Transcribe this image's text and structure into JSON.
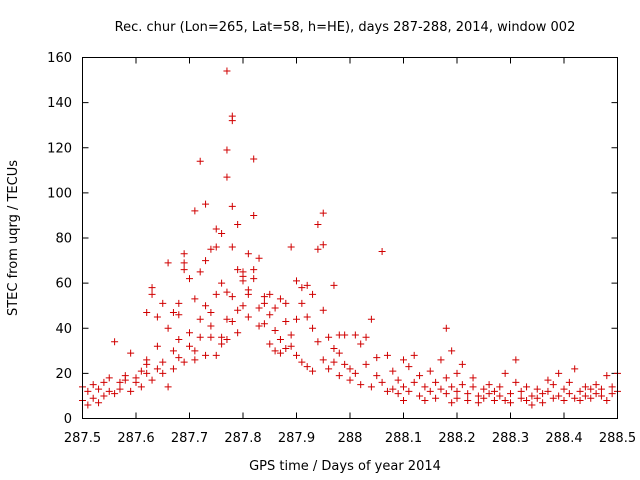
{
  "chart_data": {
    "type": "scatter",
    "title": "Rec. chur (Lon=265, Lat=58, h=HE), days 287-288, 2014, window 002",
    "xlabel": "GPS time / Days of year 2014",
    "ylabel": "STEC from uqrg / TECUs",
    "xlim": [
      287.5,
      288.5
    ],
    "ylim": [
      0,
      160
    ],
    "xticks": [
      287.5,
      287.6,
      287.7,
      287.8,
      287.9,
      288.0,
      288.1,
      288.2,
      288.3,
      288.4,
      288.5
    ],
    "xtick_labels": [
      "287.5",
      "287.6",
      "287.7",
      "287.8",
      "287.9",
      "288",
      "288.1",
      "288.2",
      "288.3",
      "288.4",
      "288.5"
    ],
    "yticks": [
      0,
      20,
      40,
      60,
      80,
      100,
      120,
      140,
      160
    ],
    "ytick_labels": [
      "0",
      "20",
      "40",
      "60",
      "80",
      "100",
      "120",
      "140",
      "160"
    ],
    "marker": "plus",
    "color": "#d00000",
    "series": [
      {
        "name": "STEC",
        "points": [
          [
            287.5,
            14
          ],
          [
            287.5,
            8
          ],
          [
            287.51,
            6
          ],
          [
            287.51,
            12
          ],
          [
            287.52,
            15
          ],
          [
            287.52,
            9
          ],
          [
            287.53,
            7
          ],
          [
            287.53,
            13
          ],
          [
            287.54,
            16
          ],
          [
            287.54,
            10
          ],
          [
            287.55,
            12
          ],
          [
            287.55,
            18
          ],
          [
            287.56,
            11
          ],
          [
            287.56,
            34
          ],
          [
            287.57,
            16
          ],
          [
            287.57,
            13
          ],
          [
            287.58,
            17
          ],
          [
            287.58,
            19
          ],
          [
            287.59,
            12
          ],
          [
            287.59,
            29
          ],
          [
            287.6,
            18
          ],
          [
            287.6,
            16
          ],
          [
            287.61,
            14
          ],
          [
            287.61,
            21
          ],
          [
            287.62,
            24
          ],
          [
            287.62,
            20
          ],
          [
            287.62,
            26
          ],
          [
            287.62,
            47
          ],
          [
            287.63,
            17
          ],
          [
            287.63,
            58
          ],
          [
            287.63,
            55
          ],
          [
            287.64,
            32
          ],
          [
            287.64,
            45
          ],
          [
            287.64,
            22
          ],
          [
            287.65,
            25
          ],
          [
            287.65,
            51
          ],
          [
            287.65,
            20
          ],
          [
            287.66,
            14
          ],
          [
            287.66,
            40
          ],
          [
            287.66,
            69
          ],
          [
            287.67,
            47
          ],
          [
            287.67,
            30
          ],
          [
            287.67,
            22
          ],
          [
            287.68,
            27
          ],
          [
            287.68,
            35
          ],
          [
            287.68,
            46
          ],
          [
            287.68,
            51
          ],
          [
            287.69,
            25
          ],
          [
            287.69,
            73
          ],
          [
            287.69,
            69
          ],
          [
            287.69,
            66
          ],
          [
            287.7,
            32
          ],
          [
            287.7,
            62
          ],
          [
            287.7,
            38
          ],
          [
            287.71,
            30
          ],
          [
            287.71,
            53
          ],
          [
            287.71,
            92
          ],
          [
            287.71,
            26
          ],
          [
            287.72,
            36
          ],
          [
            287.72,
            114
          ],
          [
            287.72,
            65
          ],
          [
            287.72,
            44
          ],
          [
            287.73,
            28
          ],
          [
            287.73,
            70
          ],
          [
            287.73,
            50
          ],
          [
            287.73,
            95
          ],
          [
            287.74,
            47
          ],
          [
            287.74,
            75
          ],
          [
            287.74,
            36
          ],
          [
            287.74,
            41
          ],
          [
            287.75,
            76
          ],
          [
            287.75,
            28
          ],
          [
            287.75,
            55
          ],
          [
            287.75,
            84
          ],
          [
            287.76,
            33
          ],
          [
            287.76,
            82
          ],
          [
            287.76,
            60
          ],
          [
            287.76,
            36
          ],
          [
            287.77,
            154
          ],
          [
            287.77,
            119
          ],
          [
            287.77,
            107
          ],
          [
            287.77,
            35
          ],
          [
            287.77,
            56
          ],
          [
            287.77,
            44
          ],
          [
            287.78,
            94
          ],
          [
            287.78,
            134
          ],
          [
            287.78,
            132
          ],
          [
            287.78,
            76
          ],
          [
            287.78,
            43
          ],
          [
            287.78,
            54
          ],
          [
            287.79,
            48
          ],
          [
            287.79,
            66
          ],
          [
            287.79,
            38
          ],
          [
            287.79,
            86
          ],
          [
            287.8,
            63
          ],
          [
            287.8,
            65
          ],
          [
            287.8,
            61
          ],
          [
            287.8,
            50
          ],
          [
            287.81,
            57
          ],
          [
            287.81,
            45
          ],
          [
            287.81,
            73
          ],
          [
            287.81,
            55
          ],
          [
            287.82,
            90
          ],
          [
            287.82,
            115
          ],
          [
            287.82,
            66
          ],
          [
            287.82,
            62
          ],
          [
            287.83,
            49
          ],
          [
            287.83,
            41
          ],
          [
            287.83,
            71
          ],
          [
            287.84,
            51
          ],
          [
            287.84,
            42
          ],
          [
            287.84,
            54
          ],
          [
            287.85,
            55
          ],
          [
            287.85,
            33
          ],
          [
            287.85,
            46
          ],
          [
            287.86,
            49
          ],
          [
            287.86,
            39
          ],
          [
            287.86,
            30
          ],
          [
            287.87,
            53
          ],
          [
            287.87,
            35
          ],
          [
            287.87,
            29
          ],
          [
            287.88,
            43
          ],
          [
            287.88,
            51
          ],
          [
            287.88,
            31
          ],
          [
            287.89,
            76
          ],
          [
            287.89,
            37
          ],
          [
            287.89,
            32
          ],
          [
            287.9,
            61
          ],
          [
            287.9,
            44
          ],
          [
            287.9,
            28
          ],
          [
            287.91,
            58
          ],
          [
            287.91,
            51
          ],
          [
            287.91,
            25
          ],
          [
            287.92,
            59
          ],
          [
            287.92,
            45
          ],
          [
            287.92,
            23
          ],
          [
            287.93,
            55
          ],
          [
            287.93,
            40
          ],
          [
            287.93,
            21
          ],
          [
            287.94,
            86
          ],
          [
            287.94,
            75
          ],
          [
            287.94,
            34
          ],
          [
            287.95,
            91
          ],
          [
            287.95,
            77
          ],
          [
            287.95,
            48
          ],
          [
            287.95,
            26
          ],
          [
            287.96,
            36
          ],
          [
            287.96,
            22
          ],
          [
            287.97,
            59
          ],
          [
            287.97,
            31
          ],
          [
            287.97,
            25
          ],
          [
            287.98,
            37
          ],
          [
            287.98,
            29
          ],
          [
            287.98,
            19
          ],
          [
            287.99,
            37
          ],
          [
            287.99,
            24
          ],
          [
            288.0,
            22
          ],
          [
            288.0,
            17
          ],
          [
            288.01,
            37
          ],
          [
            288.01,
            20
          ],
          [
            288.02,
            33
          ],
          [
            288.02,
            15
          ],
          [
            288.03,
            36
          ],
          [
            288.03,
            24
          ],
          [
            288.04,
            14
          ],
          [
            288.04,
            44
          ],
          [
            288.05,
            27
          ],
          [
            288.05,
            19
          ],
          [
            288.06,
            74
          ],
          [
            288.06,
            16
          ],
          [
            288.07,
            12
          ],
          [
            288.07,
            28
          ],
          [
            288.08,
            21
          ],
          [
            288.08,
            13
          ],
          [
            288.09,
            11
          ],
          [
            288.09,
            17
          ],
          [
            288.1,
            26
          ],
          [
            288.1,
            14
          ],
          [
            288.1,
            8
          ],
          [
            288.11,
            23
          ],
          [
            288.11,
            12
          ],
          [
            288.12,
            16
          ],
          [
            288.12,
            28
          ],
          [
            288.13,
            10
          ],
          [
            288.13,
            19
          ],
          [
            288.14,
            14
          ],
          [
            288.14,
            8
          ],
          [
            288.15,
            21
          ],
          [
            288.15,
            12
          ],
          [
            288.16,
            16
          ],
          [
            288.16,
            9
          ],
          [
            288.17,
            26
          ],
          [
            288.17,
            13
          ],
          [
            288.18,
            18
          ],
          [
            288.18,
            40
          ],
          [
            288.18,
            11
          ],
          [
            288.19,
            14
          ],
          [
            288.19,
            30
          ],
          [
            288.19,
            7
          ],
          [
            288.2,
            20
          ],
          [
            288.2,
            12
          ],
          [
            288.2,
            9
          ],
          [
            288.21,
            24
          ],
          [
            288.21,
            15
          ],
          [
            288.22,
            11
          ],
          [
            288.22,
            8
          ],
          [
            288.23,
            14
          ],
          [
            288.23,
            18
          ],
          [
            288.24,
            10
          ],
          [
            288.24,
            7
          ],
          [
            288.25,
            13
          ],
          [
            288.25,
            9
          ],
          [
            288.26,
            11
          ],
          [
            288.26,
            15
          ],
          [
            288.27,
            8
          ],
          [
            288.27,
            12
          ],
          [
            288.28,
            10
          ],
          [
            288.28,
            14
          ],
          [
            288.29,
            8
          ],
          [
            288.29,
            20
          ],
          [
            288.3,
            11
          ],
          [
            288.3,
            7
          ],
          [
            288.31,
            16
          ],
          [
            288.31,
            26
          ],
          [
            288.32,
            9
          ],
          [
            288.32,
            12
          ],
          [
            288.33,
            8
          ],
          [
            288.33,
            14
          ],
          [
            288.34,
            10
          ],
          [
            288.34,
            6
          ],
          [
            288.35,
            13
          ],
          [
            288.35,
            9
          ],
          [
            288.36,
            11
          ],
          [
            288.36,
            7
          ],
          [
            288.37,
            12
          ],
          [
            288.37,
            17
          ],
          [
            288.38,
            9
          ],
          [
            288.38,
            15
          ],
          [
            288.39,
            10
          ],
          [
            288.39,
            20
          ],
          [
            288.4,
            8
          ],
          [
            288.4,
            13
          ],
          [
            288.41,
            11
          ],
          [
            288.41,
            16
          ],
          [
            288.42,
            9
          ],
          [
            288.42,
            22
          ],
          [
            288.43,
            12
          ],
          [
            288.43,
            8
          ],
          [
            288.44,
            14
          ],
          [
            288.44,
            10
          ],
          [
            288.45,
            13
          ],
          [
            288.45,
            9
          ],
          [
            288.46,
            11
          ],
          [
            288.46,
            15
          ],
          [
            288.47,
            10
          ],
          [
            288.47,
            13
          ],
          [
            288.48,
            8
          ],
          [
            288.48,
            19
          ],
          [
            288.49,
            11
          ],
          [
            288.49,
            14
          ],
          [
            288.5,
            12
          ],
          [
            288.5,
            20
          ]
        ]
      }
    ]
  }
}
